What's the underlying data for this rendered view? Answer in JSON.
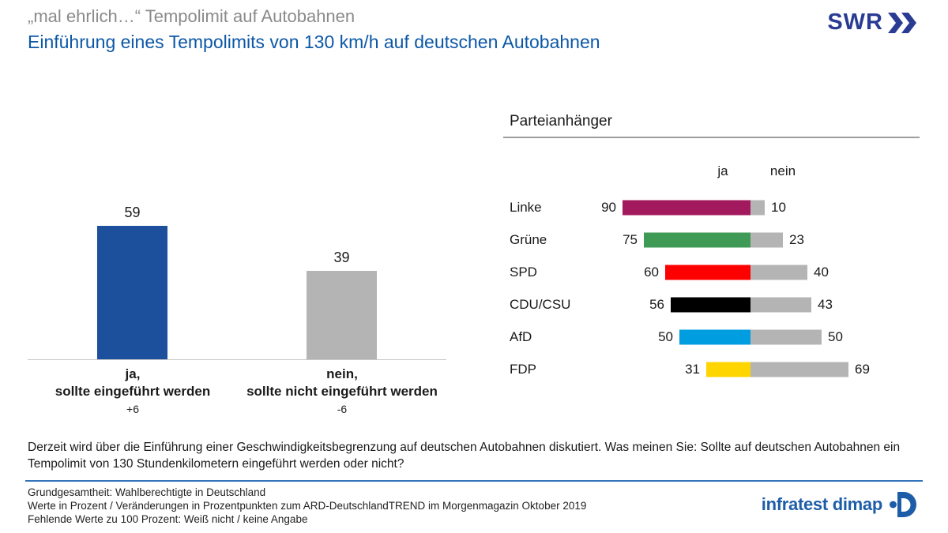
{
  "header": {
    "kicker": "„mal ehrlich…“ Tempolimit auf Autobahnen",
    "title": "Einführung eines Tempolimits von 130 km/h auf deutschen Autobahnen",
    "brand": "SWR"
  },
  "colors": {
    "title_blue": "#0b57a6",
    "kicker_gray": "#8a8a8a",
    "swr_blue": "#2a3b94",
    "footer_line_blue": "#3273b9",
    "infratest_blue": "#1d5da8",
    "bar_gray": "#b4b4b4",
    "bar_blue": "#1c4f9c"
  },
  "chart_data": [
    {
      "type": "bar",
      "title": "",
      "categories": [
        "ja,\nsollte eingeführt werden",
        "nein,\nsollte nicht eingeführt werden"
      ],
      "values": [
        59,
        39
      ],
      "changes": [
        "+6",
        "-6"
      ],
      "colors": [
        "#1c4f9c",
        "#b4b4b4"
      ],
      "ylim": [
        0,
        100
      ],
      "grid": false,
      "value_labels": true
    },
    {
      "type": "bar",
      "orientation": "horizontal",
      "title": "Parteianhänger",
      "col_headers": [
        "ja",
        "nein"
      ],
      "categories": [
        "Linke",
        "Grüne",
        "SPD",
        "CDU/CSU",
        "AfD",
        "FDP"
      ],
      "series": [
        {
          "name": "ja",
          "values": [
            90,
            75,
            60,
            56,
            50,
            31
          ],
          "colors": [
            "#a3195d",
            "#3f9a55",
            "#ff0000",
            "#000000",
            "#009ee0",
            "#ffd500"
          ]
        },
        {
          "name": "nein",
          "values": [
            10,
            23,
            40,
            43,
            50,
            69
          ],
          "color": "#b4b4b4"
        }
      ],
      "xlim": [
        0,
        100
      ],
      "value_labels": true
    }
  ],
  "question": "Derzeit wird über die Einführung einer Geschwindigkeitsbegrenzung auf deutschen Autobahnen diskutiert. Was meinen Sie: Sollte auf deutschen Autobahnen ein Tempolimit von 130 Stundenkilometern eingeführt werden oder nicht?",
  "footer": {
    "lines": [
      "Grundgesamtheit: Wahlberechtigte in Deutschland",
      "Werte in Prozent / Veränderungen in Prozentpunkten zum ARD-DeutschlandTREND im Morgenmagazin Oktober 2019",
      "Fehlende Werte zu 100 Prozent: Weiß nicht / keine Angabe"
    ],
    "brand": "infratest dimap"
  }
}
